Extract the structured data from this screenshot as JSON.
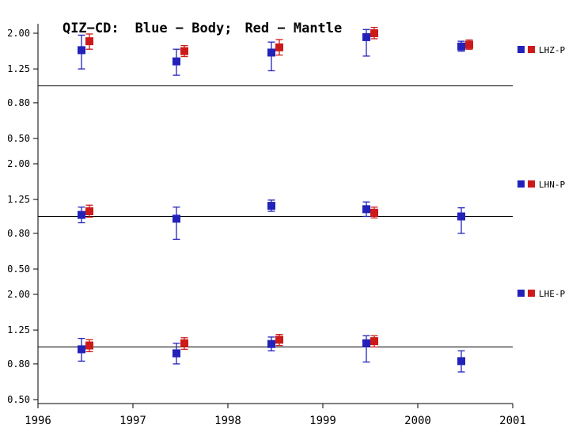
{
  "title": {
    "prefix": "QIZ−CD:",
    "blue": "Blue − Body;",
    "red": "Red − Mantle"
  },
  "colors": {
    "blue": "#2222bb",
    "red": "#cc1a1a",
    "axis": "#000000"
  },
  "xaxis": {
    "range": [
      1996,
      2001
    ],
    "ticks": [
      "1996",
      "1997",
      "1998",
      "1999",
      "2000",
      "2001"
    ]
  },
  "yaxis": {
    "scale": "log",
    "tick_values": [
      2.0,
      1.25,
      0.8,
      0.5
    ],
    "tick_labels": [
      "2.00",
      "1.25",
      "0.80",
      "0.50"
    ],
    "refline": 1.0
  },
  "chart_data": [
    {
      "type": "scatter",
      "name": "LHZ-P",
      "x": [
        1996.5,
        1997.5,
        1998.5,
        1999.5,
        2000.5
      ],
      "series": [
        {
          "name": "Body",
          "color": "blue",
          "values": [
            1.6,
            1.38,
            1.55,
            1.9,
            1.68
          ],
          "lo": [
            1.25,
            1.15,
            1.22,
            1.48,
            1.58
          ],
          "hi": [
            1.95,
            1.62,
            1.78,
            2.1,
            1.8
          ]
        },
        {
          "name": "Mantle",
          "color": "red",
          "values": [
            1.8,
            1.58,
            1.66,
            2.0,
            1.72
          ],
          "lo": [
            1.62,
            1.47,
            1.5,
            1.86,
            1.62
          ],
          "hi": [
            1.98,
            1.7,
            1.84,
            2.16,
            1.83
          ]
        }
      ]
    },
    {
      "type": "scatter",
      "name": "LHN-P",
      "x": [
        1996.5,
        1997.5,
        1998.5,
        1999.5,
        2000.5
      ],
      "series": [
        {
          "name": "Body",
          "color": "blue",
          "values": [
            1.02,
            0.97,
            1.15,
            1.1,
            1.0
          ],
          "lo": [
            0.92,
            0.74,
            1.07,
            1.0,
            0.8
          ],
          "hi": [
            1.13,
            1.13,
            1.24,
            1.21,
            1.12
          ]
        },
        {
          "name": "Mantle",
          "color": "red",
          "values": [
            1.07,
            null,
            null,
            1.05,
            null
          ],
          "lo": [
            0.99,
            null,
            null,
            0.98,
            null
          ],
          "hi": [
            1.16,
            null,
            null,
            1.13,
            null
          ]
        }
      ]
    },
    {
      "type": "scatter",
      "name": "LHE-P",
      "x": [
        1996.5,
        1997.5,
        1998.5,
        1999.5,
        2000.5
      ],
      "series": [
        {
          "name": "Body",
          "color": "blue",
          "values": [
            0.97,
            0.92,
            1.04,
            1.05,
            0.83
          ],
          "lo": [
            0.83,
            0.8,
            0.95,
            0.82,
            0.72
          ],
          "hi": [
            1.12,
            1.05,
            1.14,
            1.16,
            0.95
          ]
        },
        {
          "name": "Mantle",
          "color": "red",
          "values": [
            1.02,
            1.05,
            1.1,
            1.08,
            null
          ],
          "lo": [
            0.94,
            0.97,
            1.02,
            1.0,
            null
          ],
          "hi": [
            1.1,
            1.13,
            1.18,
            1.16,
            null
          ]
        }
      ]
    }
  ]
}
